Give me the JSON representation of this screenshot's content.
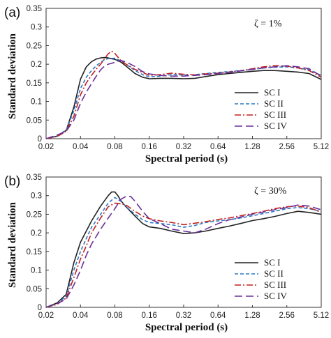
{
  "chart_data": [
    {
      "type": "line",
      "panel_label": "(a)",
      "annotation": "ζ = 1%",
      "xlabel": "Spectral period (s)",
      "ylabel": "Standard deviation",
      "x_scale": "log",
      "xlim": [
        0.02,
        5.12
      ],
      "ylim": [
        0,
        0.35
      ],
      "x_ticks": [
        0.02,
        0.04,
        0.08,
        0.16,
        0.32,
        0.64,
        1.28,
        2.56,
        5.12
      ],
      "x_tick_labels": [
        "0.02",
        "0.04",
        "0.08",
        "0.16",
        "0.32",
        "0.64",
        "1.28",
        "2.56",
        "5.12"
      ],
      "y_ticks": [
        0,
        0.05,
        0.1,
        0.15,
        0.2,
        0.25,
        0.3,
        0.35
      ],
      "y_tick_labels": [
        "0",
        "0.05",
        "0.1",
        "0.15",
        "0.2",
        "0.25",
        "0.3",
        "0.35"
      ],
      "grid": false,
      "legend_position": "bottom-right",
      "series": [
        {
          "name": "SC I",
          "color": "#222222",
          "dash": "solid",
          "x": [
            0.02,
            0.025,
            0.03,
            0.035,
            0.04,
            0.045,
            0.05,
            0.055,
            0.06,
            0.065,
            0.07,
            0.08,
            0.09,
            0.1,
            0.12,
            0.14,
            0.16,
            0.2,
            0.25,
            0.32,
            0.4,
            0.5,
            0.64,
            0.8,
            1.0,
            1.28,
            1.6,
            2.0,
            2.56,
            3.2,
            4.0,
            5.12
          ],
          "y": [
            0.0,
            0.007,
            0.022,
            0.085,
            0.16,
            0.193,
            0.207,
            0.214,
            0.217,
            0.218,
            0.217,
            0.213,
            0.206,
            0.195,
            0.175,
            0.165,
            0.161,
            0.162,
            0.162,
            0.161,
            0.162,
            0.167,
            0.172,
            0.175,
            0.178,
            0.181,
            0.183,
            0.183,
            0.181,
            0.179,
            0.175,
            0.159
          ]
        },
        {
          "name": "SC II",
          "color": "#2a78c5",
          "dash": "short-dash",
          "x": [
            0.02,
            0.025,
            0.03,
            0.035,
            0.04,
            0.045,
            0.05,
            0.055,
            0.06,
            0.065,
            0.07,
            0.08,
            0.09,
            0.1,
            0.12,
            0.14,
            0.16,
            0.2,
            0.25,
            0.32,
            0.4,
            0.5,
            0.64,
            0.8,
            1.0,
            1.28,
            1.6,
            2.0,
            2.56,
            3.2,
            4.0,
            5.12
          ],
          "y": [
            0.0,
            0.008,
            0.023,
            0.075,
            0.135,
            0.165,
            0.183,
            0.196,
            0.205,
            0.212,
            0.215,
            0.216,
            0.209,
            0.2,
            0.183,
            0.172,
            0.166,
            0.168,
            0.172,
            0.171,
            0.172,
            0.175,
            0.178,
            0.18,
            0.183,
            0.186,
            0.19,
            0.192,
            0.193,
            0.19,
            0.185,
            0.17
          ]
        },
        {
          "name": "SC III",
          "color": "#c0201b",
          "dash": "dash-dot",
          "x": [
            0.02,
            0.025,
            0.03,
            0.035,
            0.04,
            0.045,
            0.05,
            0.055,
            0.06,
            0.065,
            0.07,
            0.075,
            0.08,
            0.09,
            0.1,
            0.12,
            0.14,
            0.16,
            0.2,
            0.25,
            0.32,
            0.4,
            0.5,
            0.64,
            0.8,
            1.0,
            1.28,
            1.6,
            2.0,
            2.56,
            3.2,
            4.0,
            5.12
          ],
          "y": [
            0.0,
            0.006,
            0.02,
            0.06,
            0.118,
            0.15,
            0.17,
            0.187,
            0.2,
            0.215,
            0.228,
            0.235,
            0.229,
            0.21,
            0.2,
            0.186,
            0.178,
            0.17,
            0.172,
            0.176,
            0.173,
            0.171,
            0.174,
            0.176,
            0.179,
            0.182,
            0.188,
            0.193,
            0.196,
            0.195,
            0.19,
            0.183,
            0.165
          ]
        },
        {
          "name": "SC IV",
          "color": "#6a2e99",
          "dash": "long-dash",
          "x": [
            0.02,
            0.025,
            0.03,
            0.035,
            0.04,
            0.045,
            0.05,
            0.055,
            0.06,
            0.065,
            0.07,
            0.08,
            0.09,
            0.1,
            0.12,
            0.14,
            0.16,
            0.2,
            0.25,
            0.32,
            0.4,
            0.5,
            0.64,
            0.8,
            1.0,
            1.28,
            1.6,
            2.0,
            2.56,
            3.2,
            4.0,
            5.12
          ],
          "y": [
            0.0,
            0.01,
            0.02,
            0.05,
            0.095,
            0.125,
            0.148,
            0.168,
            0.185,
            0.195,
            0.2,
            0.205,
            0.21,
            0.206,
            0.194,
            0.18,
            0.174,
            0.17,
            0.168,
            0.168,
            0.17,
            0.172,
            0.175,
            0.178,
            0.182,
            0.186,
            0.19,
            0.193,
            0.196,
            0.193,
            0.188,
            0.168
          ]
        }
      ]
    },
    {
      "type": "line",
      "panel_label": "(b)",
      "annotation": "ζ = 30%",
      "xlabel": "Spectral period (s)",
      "ylabel": "Standard deviation",
      "x_scale": "log",
      "xlim": [
        0.02,
        5.12
      ],
      "ylim": [
        0,
        0.35
      ],
      "x_ticks": [
        0.02,
        0.04,
        0.08,
        0.16,
        0.32,
        0.64,
        1.28,
        2.56,
        5.12
      ],
      "x_tick_labels": [
        "0.02",
        "0.04",
        "0.08",
        "0.16",
        "0.32",
        "0.64",
        "1.28",
        "2.56",
        "5.12"
      ],
      "y_ticks": [
        0,
        0.05,
        0.1,
        0.15,
        0.2,
        0.25,
        0.3,
        0.35
      ],
      "y_tick_labels": [
        "0",
        "0.05",
        "0.1",
        "0.15",
        "0.2",
        "0.25",
        "0.3",
        "0.35"
      ],
      "grid": false,
      "legend_position": "bottom-right",
      "series": [
        {
          "name": "SC I",
          "color": "#222222",
          "dash": "solid",
          "x": [
            0.02,
            0.025,
            0.03,
            0.035,
            0.04,
            0.045,
            0.05,
            0.06,
            0.07,
            0.075,
            0.08,
            0.085,
            0.09,
            0.1,
            0.12,
            0.14,
            0.16,
            0.2,
            0.25,
            0.3,
            0.32,
            0.4,
            0.5,
            0.64,
            0.8,
            1.0,
            1.28,
            1.6,
            2.0,
            2.56,
            3.2,
            4.0,
            5.12
          ],
          "y": [
            0.0,
            0.012,
            0.035,
            0.12,
            0.175,
            0.205,
            0.232,
            0.272,
            0.3,
            0.31,
            0.31,
            0.3,
            0.287,
            0.27,
            0.245,
            0.225,
            0.216,
            0.212,
            0.205,
            0.2,
            0.198,
            0.2,
            0.205,
            0.212,
            0.218,
            0.225,
            0.233,
            0.238,
            0.244,
            0.252,
            0.258,
            0.255,
            0.25
          ]
        },
        {
          "name": "SC II",
          "color": "#2a78c5",
          "dash": "short-dash",
          "x": [
            0.02,
            0.025,
            0.03,
            0.035,
            0.04,
            0.045,
            0.05,
            0.06,
            0.07,
            0.08,
            0.09,
            0.1,
            0.12,
            0.14,
            0.16,
            0.2,
            0.25,
            0.32,
            0.4,
            0.5,
            0.64,
            0.8,
            1.0,
            1.28,
            1.6,
            2.0,
            2.56,
            3.2,
            4.0,
            5.12
          ],
          "y": [
            0.0,
            0.01,
            0.03,
            0.1,
            0.15,
            0.185,
            0.215,
            0.25,
            0.28,
            0.295,
            0.285,
            0.27,
            0.25,
            0.235,
            0.228,
            0.225,
            0.222,
            0.215,
            0.22,
            0.228,
            0.232,
            0.235,
            0.24,
            0.246,
            0.252,
            0.258,
            0.265,
            0.268,
            0.265,
            0.258
          ]
        },
        {
          "name": "SC III",
          "color": "#c0201b",
          "dash": "dash-dot",
          "x": [
            0.02,
            0.025,
            0.03,
            0.035,
            0.04,
            0.045,
            0.05,
            0.06,
            0.07,
            0.08,
            0.09,
            0.1,
            0.12,
            0.14,
            0.16,
            0.2,
            0.25,
            0.32,
            0.4,
            0.5,
            0.64,
            0.8,
            1.0,
            1.28,
            1.6,
            2.0,
            2.56,
            3.2,
            4.0,
            5.12
          ],
          "y": [
            0.0,
            0.008,
            0.025,
            0.08,
            0.13,
            0.165,
            0.2,
            0.24,
            0.27,
            0.28,
            0.278,
            0.275,
            0.258,
            0.245,
            0.238,
            0.232,
            0.228,
            0.222,
            0.226,
            0.23,
            0.236,
            0.24,
            0.246,
            0.252,
            0.258,
            0.265,
            0.27,
            0.272,
            0.268,
            0.255
          ]
        },
        {
          "name": "SC IV",
          "color": "#6a2e99",
          "dash": "long-dash",
          "x": [
            0.02,
            0.025,
            0.03,
            0.035,
            0.04,
            0.045,
            0.05,
            0.06,
            0.07,
            0.08,
            0.09,
            0.1,
            0.11,
            0.12,
            0.14,
            0.16,
            0.2,
            0.25,
            0.32,
            0.4,
            0.5,
            0.64,
            0.8,
            1.0,
            1.28,
            1.6,
            2.0,
            2.56,
            3.2,
            4.0,
            5.12
          ],
          "y": [
            0.0,
            0.01,
            0.022,
            0.06,
            0.1,
            0.14,
            0.17,
            0.21,
            0.24,
            0.265,
            0.29,
            0.298,
            0.298,
            0.285,
            0.258,
            0.238,
            0.225,
            0.21,
            0.205,
            0.2,
            0.21,
            0.225,
            0.235,
            0.242,
            0.25,
            0.256,
            0.262,
            0.268,
            0.275,
            0.272,
            0.262
          ]
        }
      ]
    }
  ]
}
